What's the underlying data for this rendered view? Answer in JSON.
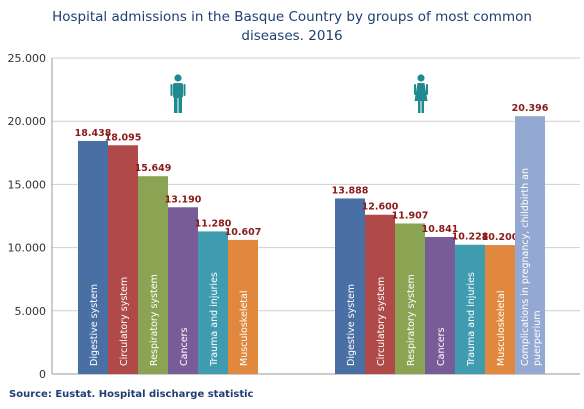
{
  "title_line1": "Hospital admissions in the Basque Country by groups of most common",
  "title_line2": "diseases. 2016",
  "source": "Source: Eustat. Hospital discharge statistic",
  "chart_data": {
    "type": "bar",
    "title": "Hospital admissions in the Basque Country by groups of most common diseases. 2016",
    "ylim": [
      0,
      25000
    ],
    "yticks": [
      "0",
      "5.000",
      "10.000",
      "15.000",
      "20.000",
      "25.000"
    ],
    "ytick_values": [
      0,
      5000,
      10000,
      15000,
      20000,
      25000
    ],
    "grid": true,
    "groups": [
      {
        "icon": "male-icon",
        "bars": [
          {
            "category": "Digestive system",
            "value": 18438,
            "label": "18.438",
            "color": "#4a6fa5"
          },
          {
            "category": "Circulatory system",
            "value": 18095,
            "label": "18.095",
            "color": "#b04a48"
          },
          {
            "category": "Respiratory system",
            "value": 15649,
            "label": "15.649",
            "color": "#8ba454"
          },
          {
            "category": "Cancers",
            "value": 13190,
            "label": "13.190",
            "color": "#775c98"
          },
          {
            "category": "Trauma and injuries",
            "value": 11280,
            "label": "11.280",
            "color": "#3f9bb0"
          },
          {
            "category": "Musculoskeletal",
            "value": 10607,
            "label": "10.607",
            "color": "#e0893e"
          }
        ]
      },
      {
        "icon": "female-icon",
        "bars": [
          {
            "category": "Digestive system",
            "value": 13888,
            "label": "13.888",
            "color": "#4a6fa5"
          },
          {
            "category": "Circulatory system",
            "value": 12600,
            "label": "12.600",
            "color": "#b04a48"
          },
          {
            "category": "Respiratory system",
            "value": 11907,
            "label": "11.907",
            "color": "#8ba454"
          },
          {
            "category": "Cancers",
            "value": 10841,
            "label": "10.841",
            "color": "#775c98"
          },
          {
            "category": "Trauma and injuries",
            "value": 10228,
            "label": "10.228",
            "color": "#3f9bb0"
          },
          {
            "category": "Musculoskeletal",
            "value": 10200,
            "label": "10.200",
            "color": "#e0893e"
          },
          {
            "category": "Complications in pregnancy, childbirth an puerperium",
            "value": 20396,
            "label": "20.396",
            "color": "#93a9d1"
          }
        ]
      }
    ]
  }
}
